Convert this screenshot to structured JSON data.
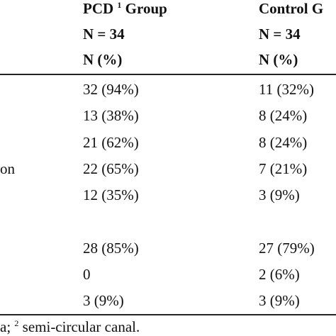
{
  "header": {
    "pcd_group": "PCD",
    "pcd_sup": "1",
    "pcd_group_word": "Group",
    "control_group": "Control G",
    "pcd_n": "N = 34",
    "control_n": "N = 34",
    "pcd_pct": "N (%)",
    "control_pct": "N (%)"
  },
  "row_label_fragment": "on",
  "rows": [
    {
      "pcd": "32 (94%)",
      "control": "11 (32%)"
    },
    {
      "pcd": "13 (38%)",
      "control": "8 (24%)"
    },
    {
      "pcd": "21 (62%)",
      "control": "8 (24%)"
    },
    {
      "pcd": "22 (65%)",
      "control": "7 (21%)"
    },
    {
      "pcd": "12 (35%)",
      "control": "3 (9%)"
    },
    {
      "pcd": "28 (85%)",
      "control": "27 (79%)"
    },
    {
      "pcd": "0",
      "control": "2 (6%)"
    },
    {
      "pcd": "3 (9%)",
      "control": "3 (9%)"
    }
  ],
  "footnote": {
    "lead": "a;",
    "sup": "2",
    "text": "semi-circular canal."
  }
}
